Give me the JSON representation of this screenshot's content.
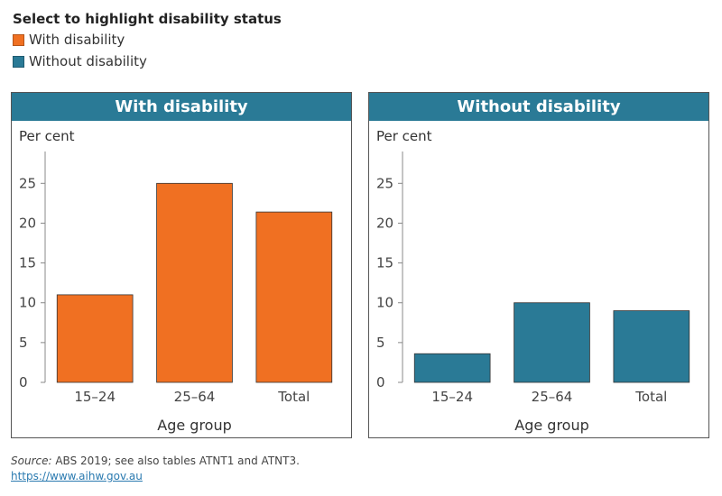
{
  "legend": {
    "title": "Select to highlight disability status",
    "items": [
      {
        "label": "With disability",
        "color": "#f07022"
      },
      {
        "label": "Without disability",
        "color": "#2a7a96"
      }
    ]
  },
  "header_color": "#2a7a96",
  "chart_data": [
    {
      "type": "bar",
      "title": "With disability",
      "ylabel": "Per cent",
      "xlabel": "Age group",
      "categories": [
        "15–24",
        "25–64",
        "Total"
      ],
      "values": [
        11,
        25,
        21.4
      ],
      "ylim": [
        0,
        29
      ],
      "yticks": [
        0,
        5,
        10,
        15,
        20,
        25
      ],
      "bar_color": "#f07022",
      "grid": false
    },
    {
      "type": "bar",
      "title": "Without disability",
      "ylabel": "Per cent",
      "xlabel": "Age group",
      "categories": [
        "15–24",
        "25–64",
        "Total"
      ],
      "values": [
        3.6,
        10,
        9
      ],
      "ylim": [
        0,
        29
      ],
      "yticks": [
        0,
        5,
        10,
        15,
        20,
        25
      ],
      "bar_color": "#2a7a96",
      "grid": false
    }
  ],
  "footer": {
    "source_label": "Source:",
    "source_text": " ABS 2019; see also tables ATNT1 and ATNT3.",
    "link": "https://www.aihw.gov.au"
  }
}
